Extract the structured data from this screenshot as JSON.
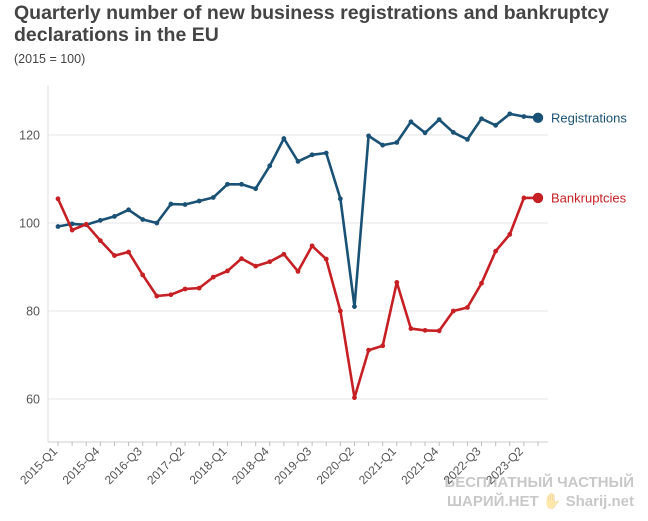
{
  "chart_data": {
    "type": "line",
    "title": "Quarterly number of new business registrations and bankruptcy declarations in the EU",
    "subtitle": "(2015 = 100)",
    "xlabel": "",
    "ylabel": "",
    "ylim": [
      50,
      130
    ],
    "yticks": [
      60,
      80,
      100,
      120
    ],
    "x_tick_labels": [
      "2015-Q1",
      "2015-Q4",
      "2016-Q3",
      "2017-Q2",
      "2018-Q1",
      "2018-Q4",
      "2019-Q3",
      "2020-Q2",
      "2021-Q1",
      "2021-Q4",
      "2022-Q3",
      "2023-Q2"
    ],
    "x": [
      "2015-Q1",
      "2015-Q2",
      "2015-Q3",
      "2015-Q4",
      "2016-Q1",
      "2016-Q2",
      "2016-Q3",
      "2016-Q4",
      "2017-Q1",
      "2017-Q2",
      "2017-Q3",
      "2017-Q4",
      "2018-Q1",
      "2018-Q2",
      "2018-Q3",
      "2018-Q4",
      "2019-Q1",
      "2019-Q2",
      "2019-Q3",
      "2019-Q4",
      "2020-Q1",
      "2020-Q2",
      "2020-Q3",
      "2020-Q4",
      "2021-Q1",
      "2021-Q2",
      "2021-Q3",
      "2021-Q4",
      "2022-Q1",
      "2022-Q2",
      "2022-Q3",
      "2022-Q4",
      "2023-Q1",
      "2023-Q2",
      "2023-Q3"
    ],
    "grid": "horizontal",
    "legend": "inline-right",
    "series": [
      {
        "name": "Registrations",
        "color": "#1a5276",
        "values": [
          99.2,
          99.8,
          99.6,
          100.6,
          101.5,
          103,
          100.8,
          100,
          104.3,
          104.2,
          105,
          105.8,
          108.8,
          108.8,
          107.8,
          113,
          119.2,
          114,
          115.5,
          115.9,
          105.5,
          81,
          119.8,
          117.7,
          118.3,
          123,
          120.5,
          123.5,
          120.6,
          119,
          123.7,
          122.2,
          124.8,
          124.2,
          123.9
        ]
      },
      {
        "name": "Bankruptcies",
        "color": "#c62025",
        "values": [
          105.5,
          98.4,
          99.7,
          96,
          92.6,
          93.4,
          88.2,
          83.4,
          83.7,
          85,
          85.2,
          87.7,
          89.1,
          91.9,
          90.2,
          91.2,
          92.9,
          89,
          94.8,
          91.8,
          80,
          60.3,
          71.1,
          72.1,
          86.5,
          76,
          75.6,
          75.5,
          80,
          80.8,
          86.3,
          93.6,
          97.4,
          105.7,
          105.7
        ]
      }
    ]
  },
  "watermark": {
    "line1": "БЕСПЛАТНЫЙ ЧАСТНЫЙ",
    "line2": "ШАРИЙ.НЕТ ✋ Sharij.net"
  }
}
